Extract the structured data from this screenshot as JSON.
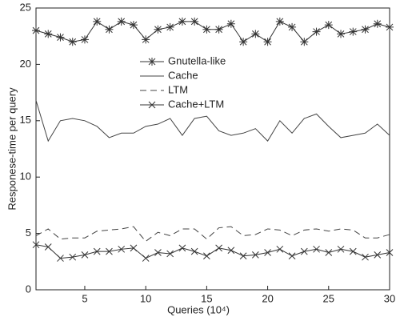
{
  "chart_data": {
    "type": "line",
    "xlabel": "Queries (10⁴)",
    "ylabel": "Responese-time per query",
    "x": [
      1,
      2,
      3,
      4,
      5,
      6,
      7,
      8,
      9,
      10,
      11,
      12,
      13,
      14,
      15,
      16,
      17,
      18,
      19,
      20,
      21,
      22,
      23,
      24,
      25,
      26,
      27,
      28,
      29,
      30
    ],
    "xlim": [
      1,
      30
    ],
    "xticks": [
      5,
      10,
      15,
      20,
      25,
      30
    ],
    "ylim": [
      0,
      25
    ],
    "yticks": [
      0,
      5,
      10,
      15,
      20,
      25
    ],
    "series": [
      {
        "name": "Gnutella-like",
        "color": "#333333",
        "dash": "none",
        "marker": "star",
        "values": [
          23,
          22.7,
          22.4,
          22,
          22.2,
          23.8,
          23.1,
          23.8,
          23.5,
          22.2,
          23.1,
          23.3,
          23.8,
          23.8,
          23.1,
          23.1,
          23.6,
          22,
          22.7,
          22,
          23.8,
          23.3,
          22,
          22.9,
          23.5,
          22.7,
          22.9,
          23.1,
          23.6,
          23.3
        ]
      },
      {
        "name": "Cache",
        "color": "#444444",
        "dash": "none",
        "marker": "none",
        "values": [
          16.8,
          13.2,
          15,
          15.2,
          15,
          14.5,
          13.5,
          13.9,
          13.9,
          14.5,
          14.7,
          15.2,
          13.7,
          15.2,
          15.4,
          14.1,
          13.7,
          13.9,
          14.3,
          13.2,
          15,
          13.9,
          15.2,
          15.6,
          14.5,
          13.5,
          13.7,
          13.9,
          14.7,
          13.7
        ]
      },
      {
        "name": "LTM",
        "color": "#444444",
        "dash": "8 5",
        "marker": "none",
        "values": [
          4.8,
          5.4,
          4.5,
          4.6,
          4.6,
          5.2,
          5.3,
          5.4,
          5.6,
          4.3,
          5.1,
          4.8,
          5.4,
          5.4,
          4.5,
          5.5,
          5.6,
          4.8,
          4.9,
          5.4,
          5.3,
          4.8,
          5.3,
          5.4,
          5.2,
          5.4,
          5.3,
          4.6,
          4.6,
          4.9
        ]
      },
      {
        "name": "Cache+LTM",
        "color": "#333333",
        "dash": "none",
        "marker": "x",
        "values": [
          4,
          3.8,
          2.8,
          2.9,
          3.1,
          3.4,
          3.4,
          3.6,
          3.7,
          2.8,
          3.3,
          3.2,
          3.7,
          3.4,
          3,
          3.7,
          3.5,
          3,
          3.1,
          3.3,
          3.6,
          3,
          3.4,
          3.6,
          3.3,
          3.6,
          3.4,
          2.9,
          3.1,
          3.3
        ]
      }
    ]
  }
}
